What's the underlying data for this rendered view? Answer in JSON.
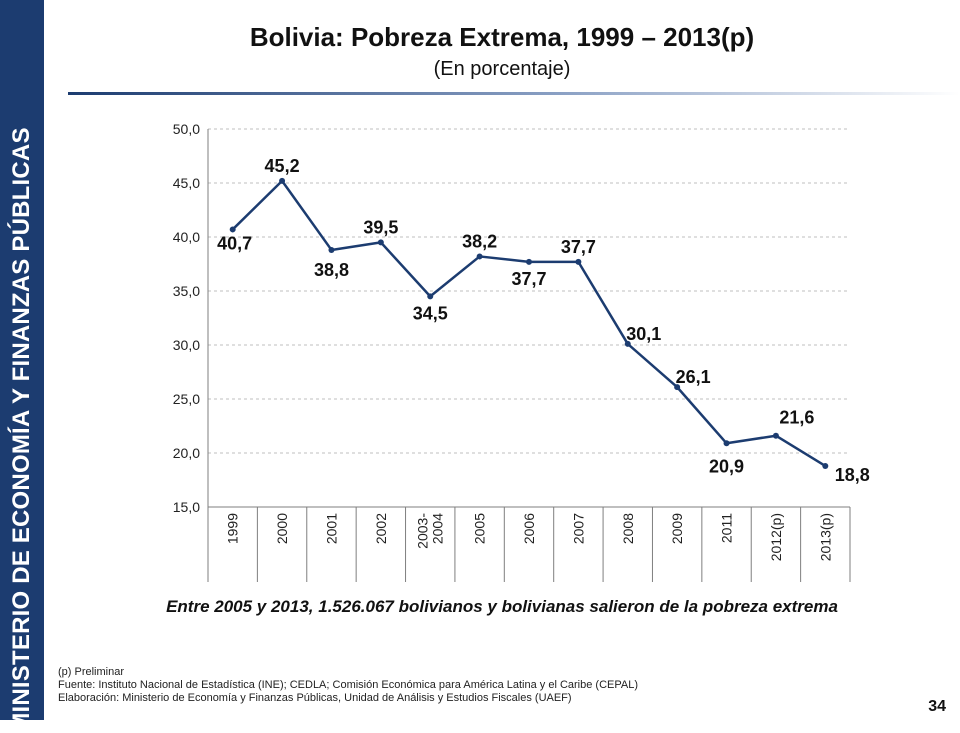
{
  "sidebar": {
    "text": "MINISTERIO DE ECONOMÍA Y FINANZAS PÚBLICAS"
  },
  "header": {
    "title": "Bolivia: Pobreza Extrema, 1999 – 2013(p)",
    "subtitle": "(En porcentaje)"
  },
  "chart_data": {
    "type": "line",
    "categories": [
      "1999",
      "2000",
      "2001",
      "2002",
      "2003-\n2004",
      "2005",
      "2006",
      "2007",
      "2008",
      "2009",
      "2011",
      "2012(p)",
      "2013(p)"
    ],
    "values": [
      40.7,
      45.2,
      38.8,
      39.5,
      34.5,
      38.2,
      37.7,
      37.7,
      30.1,
      26.1,
      20.9,
      21.6,
      18.8
    ],
    "data_labels": [
      "40,7",
      "45,2",
      "38,8",
      "39,5",
      "34,5",
      "38,2",
      "37,7",
      "37,7",
      "30,1",
      "26,1",
      "20,9",
      "21,6",
      "18,8"
    ],
    "y_ticks": [
      "15,0",
      "20,0",
      "25,0",
      "30,0",
      "35,0",
      "40,0",
      "45,0",
      "50,0"
    ],
    "ylim": [
      15,
      50
    ],
    "grid": true,
    "line_color": "#1c3c70"
  },
  "highlight": "Entre 2005 y 2013, 1.526.067 bolivianos y bolivianas salieron de la pobreza extrema",
  "notes": [
    "(p) Preliminar",
    "Fuente: Instituto Nacional de Estadística (INE);  CEDLA; Comisión Económica para América Latina y el Caribe (CEPAL)",
    "Elaboración: Ministerio de Economía y Finanzas Públicas, Unidad de Análisis y Estudios Fiscales (UAEF)"
  ],
  "page_number": "34"
}
